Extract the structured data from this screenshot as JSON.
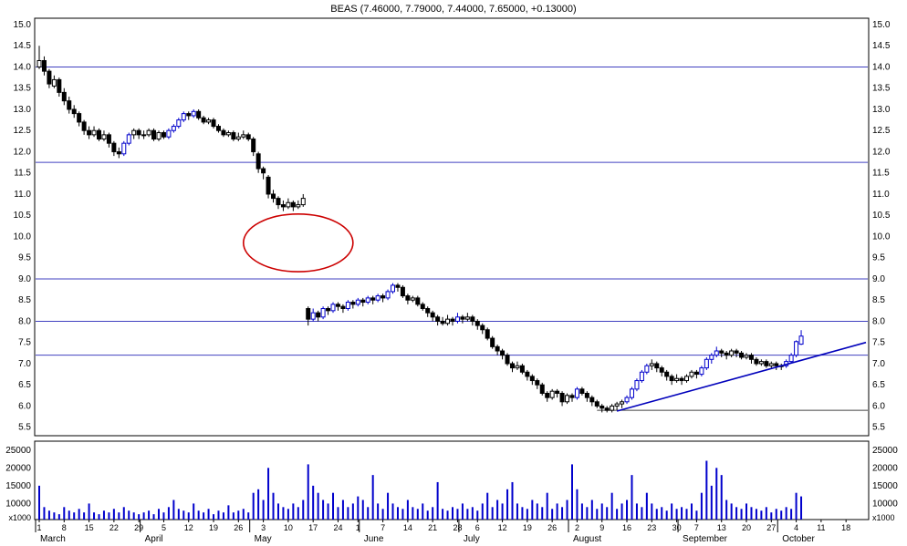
{
  "title": "BEAS (7.46000, 7.79000, 7.44000, 7.65000, +0.13000)",
  "chart_data": {
    "type": "candlestick+volume",
    "title": "BEAS (7.46000, 7.79000, 7.44000, 7.65000, +0.13000)",
    "symbol": "BEAS",
    "quote": {
      "open": 7.46,
      "high": 7.79,
      "low": 7.44,
      "close": 7.65,
      "change": 0.13
    },
    "price_axis": {
      "labels": [
        "15.0",
        "14.5",
        "14.0",
        "13.5",
        "13.0",
        "12.5",
        "12.0",
        "11.5",
        "11.0",
        "10.5",
        "10.0",
        "9.5",
        "9.0",
        "8.5",
        "8.0",
        "7.5",
        "7.0",
        "6.5",
        "6.0",
        "5.5"
      ],
      "min": 5.3,
      "max": 15.15
    },
    "volume_axis": {
      "labels": [
        "25000",
        "20000",
        "15000",
        "10000"
      ],
      "unit_label": "x1000",
      "min": 5500,
      "max": 27500
    },
    "levels": [
      14.0,
      11.75,
      9.0,
      8.0,
      7.2
    ],
    "support_line": {
      "price": 5.9,
      "from_index": 112
    },
    "trendline": {
      "from": {
        "index": 116,
        "price": 5.88
      },
      "to": {
        "index": 166,
        "price": 7.5
      }
    },
    "ellipse_annotation": {
      "center_index": 52,
      "center_price": 9.85,
      "rx_index": 11,
      "ry_price": 0.68
    },
    "colors": {
      "candle": "#000000",
      "accent_blue": "#0000cc",
      "level_line": "#4040c0",
      "trend": "#0000bb",
      "ellipse": "#cc0000",
      "volume": "#0000cc",
      "support_segment": "#444444",
      "border": "#000000"
    },
    "slots": 166,
    "candles": [
      [
        14.0,
        14.5,
        13.95,
        14.15
      ],
      [
        14.15,
        14.25,
        13.8,
        13.9
      ],
      [
        13.9,
        13.95,
        13.5,
        13.6
      ],
      [
        13.55,
        13.8,
        13.5,
        13.7
      ],
      [
        13.7,
        13.75,
        13.3,
        13.4
      ],
      [
        13.4,
        13.5,
        13.1,
        13.2
      ],
      [
        13.2,
        13.3,
        12.9,
        13.0
      ],
      [
        13.0,
        13.1,
        12.8,
        12.9
      ],
      [
        12.9,
        12.95,
        12.6,
        12.7
      ],
      [
        12.7,
        12.75,
        12.4,
        12.5
      ],
      [
        12.5,
        12.6,
        12.3,
        12.4
      ],
      [
        12.4,
        12.6,
        12.35,
        12.5
      ],
      [
        12.5,
        12.55,
        12.25,
        12.3
      ],
      [
        12.3,
        12.5,
        12.25,
        12.4
      ],
      [
        12.4,
        12.45,
        12.1,
        12.2
      ],
      [
        12.2,
        12.25,
        11.9,
        12.0
      ],
      [
        12.0,
        12.1,
        11.85,
        11.95
      ],
      [
        11.95,
        12.25,
        11.9,
        12.2,
        1
      ],
      [
        12.2,
        12.45,
        12.15,
        12.4,
        1
      ],
      [
        12.4,
        12.55,
        12.3,
        12.5
      ],
      [
        12.5,
        12.55,
        12.3,
        12.4
      ],
      [
        12.4,
        12.5,
        12.3,
        12.4
      ],
      [
        12.4,
        12.55,
        12.35,
        12.5
      ],
      [
        12.5,
        12.55,
        12.25,
        12.3
      ],
      [
        12.3,
        12.5,
        12.25,
        12.45
      ],
      [
        12.45,
        12.5,
        12.3,
        12.35
      ],
      [
        12.35,
        12.55,
        12.3,
        12.5,
        1
      ],
      [
        12.5,
        12.65,
        12.45,
        12.6,
        1
      ],
      [
        12.6,
        12.8,
        12.55,
        12.75,
        1
      ],
      [
        12.75,
        12.95,
        12.7,
        12.9,
        1
      ],
      [
        12.9,
        12.95,
        12.75,
        12.85
      ],
      [
        12.85,
        13.0,
        12.8,
        12.95,
        1
      ],
      [
        12.95,
        13.0,
        12.75,
        12.8
      ],
      [
        12.8,
        12.85,
        12.65,
        12.7
      ],
      [
        12.7,
        12.8,
        12.65,
        12.75
      ],
      [
        12.75,
        12.8,
        12.55,
        12.6
      ],
      [
        12.6,
        12.65,
        12.45,
        12.5
      ],
      [
        12.5,
        12.55,
        12.35,
        12.4
      ],
      [
        12.4,
        12.5,
        12.35,
        12.45
      ],
      [
        12.45,
        12.5,
        12.25,
        12.3
      ],
      [
        12.3,
        12.45,
        12.25,
        12.35
      ],
      [
        12.35,
        12.5,
        12.3,
        12.4
      ],
      [
        12.4,
        12.45,
        12.25,
        12.3
      ],
      [
        12.3,
        12.35,
        11.9,
        12.0
      ],
      [
        11.95,
        12.0,
        11.5,
        11.6
      ],
      [
        11.6,
        11.65,
        11.35,
        11.5
      ],
      [
        11.4,
        11.45,
        10.9,
        11.0
      ],
      [
        11.0,
        11.1,
        10.8,
        10.9
      ],
      [
        10.9,
        10.95,
        10.65,
        10.75
      ],
      [
        10.75,
        10.85,
        10.6,
        10.7
      ],
      [
        10.7,
        10.9,
        10.65,
        10.8
      ],
      [
        10.8,
        10.85,
        10.6,
        10.7
      ],
      [
        10.7,
        10.85,
        10.65,
        10.75
      ],
      [
        10.75,
        11.0,
        10.7,
        10.9
      ],
      [
        8.3,
        8.35,
        7.9,
        8.05
      ],
      [
        8.05,
        8.3,
        8.0,
        8.2,
        1
      ],
      [
        8.2,
        8.25,
        8.0,
        8.1
      ],
      [
        8.1,
        8.35,
        8.05,
        8.3,
        1
      ],
      [
        8.3,
        8.35,
        8.15,
        8.25
      ],
      [
        8.25,
        8.45,
        8.2,
        8.4,
        1
      ],
      [
        8.4,
        8.45,
        8.25,
        8.35
      ],
      [
        8.35,
        8.4,
        8.2,
        8.3
      ],
      [
        8.3,
        8.5,
        8.25,
        8.45,
        1
      ],
      [
        8.45,
        8.5,
        8.3,
        8.4
      ],
      [
        8.4,
        8.55,
        8.35,
        8.5,
        1
      ],
      [
        8.5,
        8.55,
        8.35,
        8.45
      ],
      [
        8.45,
        8.6,
        8.4,
        8.55,
        1
      ],
      [
        8.55,
        8.6,
        8.4,
        8.5
      ],
      [
        8.5,
        8.65,
        8.45,
        8.6,
        1
      ],
      [
        8.6,
        8.65,
        8.45,
        8.55
      ],
      [
        8.55,
        8.75,
        8.5,
        8.7,
        1
      ],
      [
        8.7,
        8.9,
        8.65,
        8.85,
        1
      ],
      [
        8.85,
        8.9,
        8.7,
        8.8
      ],
      [
        8.8,
        8.85,
        8.55,
        8.6
      ],
      [
        8.6,
        8.65,
        8.4,
        8.5
      ],
      [
        8.5,
        8.6,
        8.45,
        8.55
      ],
      [
        8.55,
        8.6,
        8.35,
        8.4
      ],
      [
        8.4,
        8.45,
        8.25,
        8.3
      ],
      [
        8.3,
        8.35,
        8.1,
        8.2
      ],
      [
        8.2,
        8.25,
        8.0,
        8.1
      ],
      [
        8.1,
        8.15,
        7.9,
        8.0
      ],
      [
        8.0,
        8.1,
        7.9,
        7.95
      ],
      [
        7.95,
        8.15,
        7.9,
        8.05
      ],
      [
        8.05,
        8.1,
        7.9,
        8.0
      ],
      [
        8.0,
        8.2,
        7.95,
        8.1,
        1
      ],
      [
        8.1,
        8.15,
        7.95,
        8.05
      ],
      [
        8.05,
        8.2,
        8.0,
        8.1
      ],
      [
        8.1,
        8.15,
        7.9,
        8.0
      ],
      [
        8.0,
        8.05,
        7.8,
        7.9
      ],
      [
        7.9,
        7.95,
        7.7,
        7.8
      ],
      [
        7.8,
        7.85,
        7.55,
        7.6
      ],
      [
        7.6,
        7.65,
        7.35,
        7.4
      ],
      [
        7.4,
        7.45,
        7.2,
        7.3
      ],
      [
        7.3,
        7.35,
        7.1,
        7.2
      ],
      [
        7.2,
        7.25,
        6.95,
        7.0
      ],
      [
        7.0,
        7.05,
        6.8,
        6.9
      ],
      [
        6.9,
        7.05,
        6.85,
        6.95
      ],
      [
        6.95,
        7.0,
        6.75,
        6.8
      ],
      [
        6.8,
        6.85,
        6.6,
        6.7
      ],
      [
        6.7,
        6.75,
        6.5,
        6.6
      ],
      [
        6.6,
        6.65,
        6.4,
        6.5
      ],
      [
        6.5,
        6.55,
        6.25,
        6.3
      ],
      [
        6.3,
        6.35,
        6.1,
        6.2
      ],
      [
        6.2,
        6.4,
        6.15,
        6.35
      ],
      [
        6.35,
        6.4,
        6.2,
        6.3
      ],
      [
        6.3,
        6.35,
        6.0,
        6.1
      ],
      [
        6.1,
        6.3,
        6.05,
        6.25
      ],
      [
        6.25,
        6.3,
        6.1,
        6.2
      ],
      [
        6.2,
        6.45,
        6.15,
        6.4,
        1
      ],
      [
        6.4,
        6.45,
        6.25,
        6.3
      ],
      [
        6.3,
        6.35,
        6.1,
        6.2
      ],
      [
        6.2,
        6.25,
        6.0,
        6.1
      ],
      [
        6.1,
        6.15,
        5.95,
        6.0
      ],
      [
        6.0,
        6.05,
        5.85,
        5.95
      ],
      [
        5.95,
        6.0,
        5.85,
        5.9
      ],
      [
        5.9,
        6.05,
        5.85,
        6.0
      ],
      [
        6.0,
        6.1,
        5.9,
        6.05
      ],
      [
        6.05,
        6.15,
        5.95,
        6.1
      ],
      [
        6.1,
        6.25,
        6.05,
        6.2,
        1
      ],
      [
        6.2,
        6.45,
        6.15,
        6.4,
        1
      ],
      [
        6.4,
        6.65,
        6.35,
        6.6,
        1
      ],
      [
        6.6,
        6.85,
        6.55,
        6.8,
        1
      ],
      [
        6.8,
        7.0,
        6.75,
        6.95,
        1
      ],
      [
        6.95,
        7.1,
        6.85,
        7.0
      ],
      [
        7.0,
        7.05,
        6.8,
        6.9
      ],
      [
        6.9,
        6.95,
        6.7,
        6.8
      ],
      [
        6.8,
        6.85,
        6.6,
        6.7
      ],
      [
        6.7,
        6.75,
        6.5,
        6.6
      ],
      [
        6.6,
        6.75,
        6.55,
        6.65
      ],
      [
        6.65,
        6.7,
        6.5,
        6.6
      ],
      [
        6.6,
        6.75,
        6.55,
        6.7
      ],
      [
        6.7,
        6.85,
        6.65,
        6.8
      ],
      [
        6.8,
        6.85,
        6.65,
        6.75
      ],
      [
        6.75,
        6.95,
        6.7,
        6.9,
        1
      ],
      [
        6.9,
        7.15,
        6.85,
        7.1,
        1
      ],
      [
        7.1,
        7.25,
        7.0,
        7.2,
        1
      ],
      [
        7.2,
        7.4,
        7.15,
        7.3,
        1
      ],
      [
        7.3,
        7.35,
        7.15,
        7.25
      ],
      [
        7.25,
        7.3,
        7.1,
        7.2
      ],
      [
        7.2,
        7.35,
        7.15,
        7.3
      ],
      [
        7.3,
        7.35,
        7.15,
        7.25
      ],
      [
        7.25,
        7.3,
        7.1,
        7.15
      ],
      [
        7.15,
        7.25,
        7.1,
        7.2
      ],
      [
        7.2,
        7.25,
        7.0,
        7.1
      ],
      [
        7.1,
        7.15,
        6.95,
        7.0
      ],
      [
        7.0,
        7.1,
        6.95,
        7.05
      ],
      [
        7.05,
        7.1,
        6.9,
        6.95
      ],
      [
        6.95,
        7.05,
        6.9,
        7.0
      ],
      [
        7.0,
        7.05,
        6.85,
        6.95
      ],
      [
        6.95,
        7.0,
        6.85,
        6.95
      ],
      [
        6.95,
        7.1,
        6.9,
        7.05,
        1
      ],
      [
        7.05,
        7.25,
        7.0,
        7.2,
        1
      ],
      [
        7.2,
        7.55,
        7.15,
        7.52,
        1
      ],
      [
        7.46,
        7.79,
        7.44,
        7.65,
        1
      ]
    ],
    "volumes": [
      15000,
      9000,
      8000,
      7500,
      7000,
      9000,
      8000,
      7500,
      8500,
      7500,
      10000,
      7500,
      7000,
      8000,
      7500,
      8500,
      7500,
      9000,
      8000,
      7500,
      7000,
      7500,
      8000,
      7000,
      8500,
      7500,
      9000,
      11000,
      8500,
      8000,
      7500,
      10000,
      8000,
      7500,
      8500,
      7000,
      8000,
      7500,
      9500,
      7500,
      8000,
      8500,
      7500,
      13000,
      14000,
      11000,
      20000,
      13000,
      10000,
      9000,
      8500,
      10000,
      9000,
      11000,
      21000,
      15000,
      13000,
      11000,
      10000,
      13000,
      9000,
      11000,
      9000,
      10000,
      12000,
      11000,
      9000,
      18000,
      10000,
      8500,
      13000,
      10000,
      9000,
      8500,
      11000,
      9000,
      8500,
      10000,
      8000,
      9000,
      16000,
      8500,
      8000,
      9000,
      8500,
      10000,
      8500,
      9000,
      8000,
      10000,
      13000,
      9000,
      11000,
      10000,
      14000,
      16000,
      10000,
      9000,
      8500,
      11000,
      10000,
      9000,
      13000,
      8500,
      10000,
      9000,
      11000,
      21000,
      14000,
      10000,
      9000,
      11000,
      8500,
      10000,
      9000,
      13000,
      8500,
      10000,
      11000,
      18000,
      10000,
      9000,
      13000,
      10000,
      8500,
      9000,
      8000,
      10000,
      8500,
      9000,
      8500,
      10000,
      8000,
      13000,
      22000,
      15000,
      20000,
      18000,
      11000,
      10000,
      9000,
      8500,
      10000,
      9000,
      8500,
      8000,
      9000,
      7500,
      8500,
      8000,
      9000,
      8500,
      13000,
      12000
    ],
    "x_ticks": [
      {
        "label": "1",
        "i": 0
      },
      {
        "label": "8",
        "i": 5
      },
      {
        "label": "15",
        "i": 10
      },
      {
        "label": "22",
        "i": 15
      },
      {
        "label": "29",
        "i": 20
      },
      {
        "label": "5",
        "i": 25
      },
      {
        "label": "12",
        "i": 30
      },
      {
        "label": "19",
        "i": 35
      },
      {
        "label": "26",
        "i": 40
      },
      {
        "label": "3",
        "i": 45
      },
      {
        "label": "10",
        "i": 50
      },
      {
        "label": "17",
        "i": 55
      },
      {
        "label": "24",
        "i": 60
      },
      {
        "label": "1",
        "i": 64
      },
      {
        "label": "7",
        "i": 69
      },
      {
        "label": "14",
        "i": 74
      },
      {
        "label": "21",
        "i": 79
      },
      {
        "label": "28",
        "i": 84
      },
      {
        "label": "6",
        "i": 88
      },
      {
        "label": "12",
        "i": 93
      },
      {
        "label": "19",
        "i": 98
      },
      {
        "label": "26",
        "i": 103
      },
      {
        "label": "2",
        "i": 108
      },
      {
        "label": "9",
        "i": 113
      },
      {
        "label": "16",
        "i": 118
      },
      {
        "label": "23",
        "i": 123
      },
      {
        "label": "30",
        "i": 128
      },
      {
        "label": "7",
        "i": 132
      },
      {
        "label": "13",
        "i": 137
      },
      {
        "label": "20",
        "i": 142
      },
      {
        "label": "27",
        "i": 147
      },
      {
        "label": "4",
        "i": 152
      },
      {
        "label": "11",
        "i": 157
      },
      {
        "label": "18",
        "i": 162
      }
    ],
    "months": [
      {
        "label": "March",
        "i": 0
      },
      {
        "label": "April",
        "i": 21
      },
      {
        "label": "May",
        "i": 43
      },
      {
        "label": "June",
        "i": 65
      },
      {
        "label": "July",
        "i": 85
      },
      {
        "label": "August",
        "i": 107
      },
      {
        "label": "September",
        "i": 129
      },
      {
        "label": "October",
        "i": 149
      }
    ],
    "legend_position": "none",
    "grid": "horizontal-levels-only"
  }
}
